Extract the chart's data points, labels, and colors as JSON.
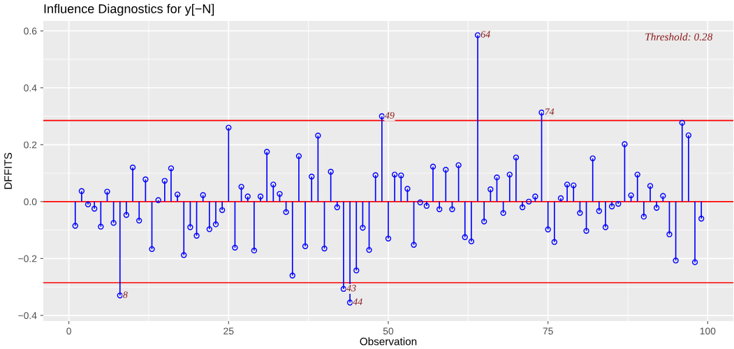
{
  "chart_data": {
    "type": "lollipop",
    "title": "Influence Diagnostics for y[−N]",
    "xlabel": "Observation",
    "ylabel": "DFFITS",
    "x": [
      1,
      2,
      3,
      4,
      5,
      6,
      7,
      8,
      9,
      10,
      11,
      12,
      13,
      14,
      15,
      16,
      17,
      18,
      19,
      20,
      21,
      22,
      23,
      24,
      25,
      26,
      27,
      28,
      29,
      30,
      31,
      32,
      33,
      34,
      35,
      36,
      37,
      38,
      39,
      40,
      41,
      42,
      43,
      44,
      45,
      46,
      47,
      48,
      49,
      50,
      51,
      52,
      53,
      54,
      55,
      56,
      57,
      58,
      59,
      60,
      61,
      62,
      63,
      64,
      65,
      66,
      67,
      68,
      69,
      70,
      71,
      72,
      73,
      74,
      75,
      76,
      77,
      78,
      79,
      80,
      81,
      82,
      83,
      84,
      85,
      86,
      87,
      88,
      89,
      90,
      91,
      92,
      93,
      94,
      95,
      96,
      97,
      98,
      99
    ],
    "values": [
      -0.085,
      0.037,
      -0.01,
      -0.025,
      -0.088,
      0.035,
      -0.075,
      -0.33,
      -0.047,
      0.12,
      -0.067,
      0.078,
      -0.167,
      0.005,
      0.073,
      0.117,
      0.025,
      -0.188,
      -0.09,
      -0.12,
      0.023,
      -0.097,
      -0.08,
      -0.03,
      0.26,
      -0.162,
      0.052,
      0.018,
      -0.172,
      0.018,
      0.175,
      0.06,
      0.027,
      -0.037,
      -0.26,
      0.16,
      -0.157,
      0.088,
      0.232,
      -0.165,
      0.105,
      -0.02,
      -0.307,
      -0.355,
      -0.242,
      -0.092,
      -0.17,
      0.093,
      0.3,
      -0.13,
      0.095,
      0.092,
      0.045,
      -0.152,
      -0.003,
      -0.015,
      0.123,
      -0.027,
      0.112,
      -0.027,
      0.128,
      -0.125,
      -0.14,
      0.585,
      -0.07,
      0.043,
      0.085,
      -0.04,
      0.095,
      0.155,
      -0.02,
      0.0,
      0.018,
      0.313,
      -0.098,
      -0.142,
      0.012,
      0.06,
      0.057,
      -0.04,
      -0.103,
      0.152,
      -0.033,
      -0.09,
      -0.017,
      -0.008,
      0.202,
      0.022,
      0.095,
      -0.053,
      0.055,
      -0.022,
      0.02,
      -0.115,
      -0.207,
      0.277,
      0.233,
      -0.213,
      -0.06
    ],
    "color": "#0000ff",
    "marker": "circle",
    "xlim": [
      -4,
      104
    ],
    "xticks": [
      0,
      25,
      50,
      75,
      100
    ],
    "ylim": [
      -0.42,
      0.635
    ],
    "yticks": [
      {
        "value": -0.4,
        "label": "−0.4"
      },
      {
        "value": -0.2,
        "label": "−0.2"
      },
      {
        "value": 0,
        "label": "0.0"
      },
      {
        "value": 0.2,
        "label": "0.2"
      },
      {
        "value": 0.4,
        "label": "0.4"
      },
      {
        "value": 0.6,
        "label": "0.6"
      }
    ],
    "grid": true,
    "ref_lines": [
      {
        "axis": "y",
        "value": 0.285,
        "color": "#ff0000"
      },
      {
        "axis": "y",
        "value": -0.285,
        "color": "#ff0000"
      },
      {
        "axis": "y",
        "value": 0,
        "color": "#ff0000"
      }
    ],
    "annotations": [
      "Threshold: 0.28",
      {
        "text": "8",
        "x": 8,
        "y": -0.33
      },
      {
        "text": "43",
        "x": 43,
        "y": -0.307
      },
      {
        "text": "44",
        "x": 44,
        "y": -0.355
      },
      {
        "text": "49",
        "x": 49,
        "y": 0.3
      },
      {
        "text": "64",
        "x": 64,
        "y": 0.585
      },
      {
        "text": "74",
        "x": 74,
        "y": 0.313
      }
    ]
  }
}
